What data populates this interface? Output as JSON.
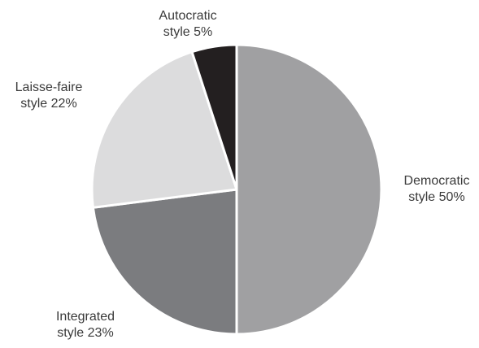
{
  "chart_data": {
    "type": "pie",
    "categories": [
      "Democratic style",
      "Integrated style",
      "Laisse-faire style",
      "Autocratic style"
    ],
    "values": [
      50,
      23,
      22,
      5
    ],
    "value_labels": [
      "50%",
      "23%",
      "22%",
      "5%"
    ],
    "colors": [
      "#a0a0a2",
      "#7b7c7f",
      "#dcdcdd",
      "#231f20"
    ]
  }
}
